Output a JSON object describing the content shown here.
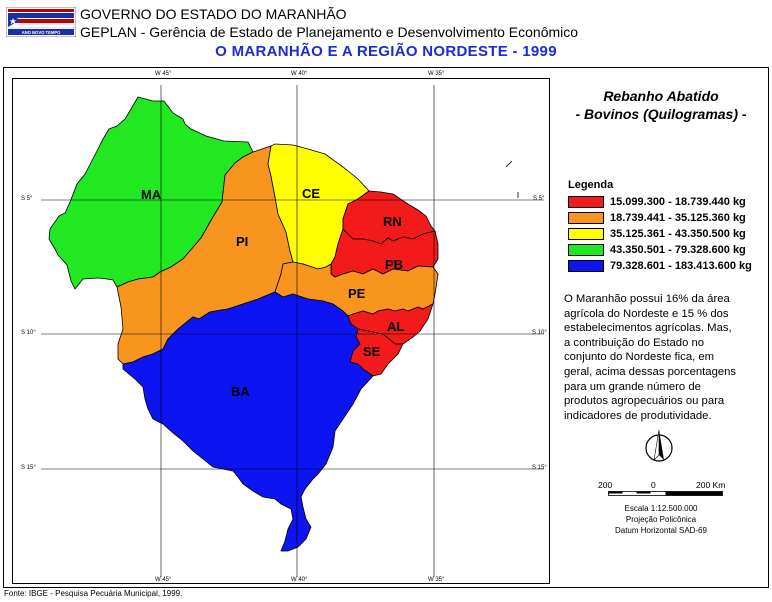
{
  "header": {
    "line1": "GOVERNO DO ESTADO DO MARANHÃO",
    "line2": "GEPLAN - Gerência de Estado de Planejamento e Desenvolvimento Econômico",
    "title": "O MARANHÃO E A REGIÃO NORDESTE - 1999",
    "logo_text": "ANO NOVO TEMPO"
  },
  "graticule": {
    "top_labels": [
      "W 45°",
      "W 40°",
      "W 35°"
    ],
    "bottom_labels": [
      "W 45°",
      "W 40°",
      "W 35°"
    ],
    "left_labels": [
      "S 5°",
      "S 10°",
      "S 15°"
    ],
    "right_labels": [
      "S 5°",
      "S 10°",
      "S 15°"
    ]
  },
  "states": [
    {
      "code": "MA",
      "color": "#22e822"
    },
    {
      "code": "PI",
      "color": "#f7951f"
    },
    {
      "code": "CE",
      "color": "#ffff00"
    },
    {
      "code": "RN",
      "color": "#f21a1a"
    },
    {
      "code": "PB",
      "color": "#f21a1a"
    },
    {
      "code": "PE",
      "color": "#f7951f"
    },
    {
      "code": "AL",
      "color": "#f21a1a"
    },
    {
      "code": "SE",
      "color": "#f21a1a"
    },
    {
      "code": "BA",
      "color": "#0d14f2"
    }
  ],
  "legend": {
    "title1": "Rebanho Abatido",
    "title2": "- Bovinos (Quilogramas) -",
    "heading": "Legenda",
    "items": [
      {
        "label": "15.099.300 - 18.739.440 kg",
        "color": "#f21a1a"
      },
      {
        "label": "18.739.441 - 35.125.360 kg",
        "color": "#f7951f"
      },
      {
        "label": "35.125.361 - 43.350.500 kg",
        "color": "#ffff00"
      },
      {
        "label": "43.350.501 - 79.328.600 kg",
        "color": "#22e822"
      },
      {
        "label": "79.328.601 - 183.413.600 kg",
        "color": "#0d14f2"
      }
    ]
  },
  "description": [
    "O Maranhão possui 16% da área",
    "agrícola do Nordeste e 15 % dos",
    "estabelecimentos agrícolas. Mas,",
    "a contribuição do Estado no",
    "conjunto do Nordeste fica, em",
    "geral, acima dessas porcentagens",
    "para um grande número de",
    "produtos agropecuários ou para",
    "indicadores de produtividade."
  ],
  "scale": {
    "left": "200",
    "mid": "0",
    "right": "200 Km",
    "line1": "Escala 1:12.500.000",
    "line2": "Projeção Policônica",
    "line3": "Datum Horizontal SAD-69"
  },
  "footer": "Fonte: IBGE - Pesquisa Pecuária Municipal, 1999."
}
